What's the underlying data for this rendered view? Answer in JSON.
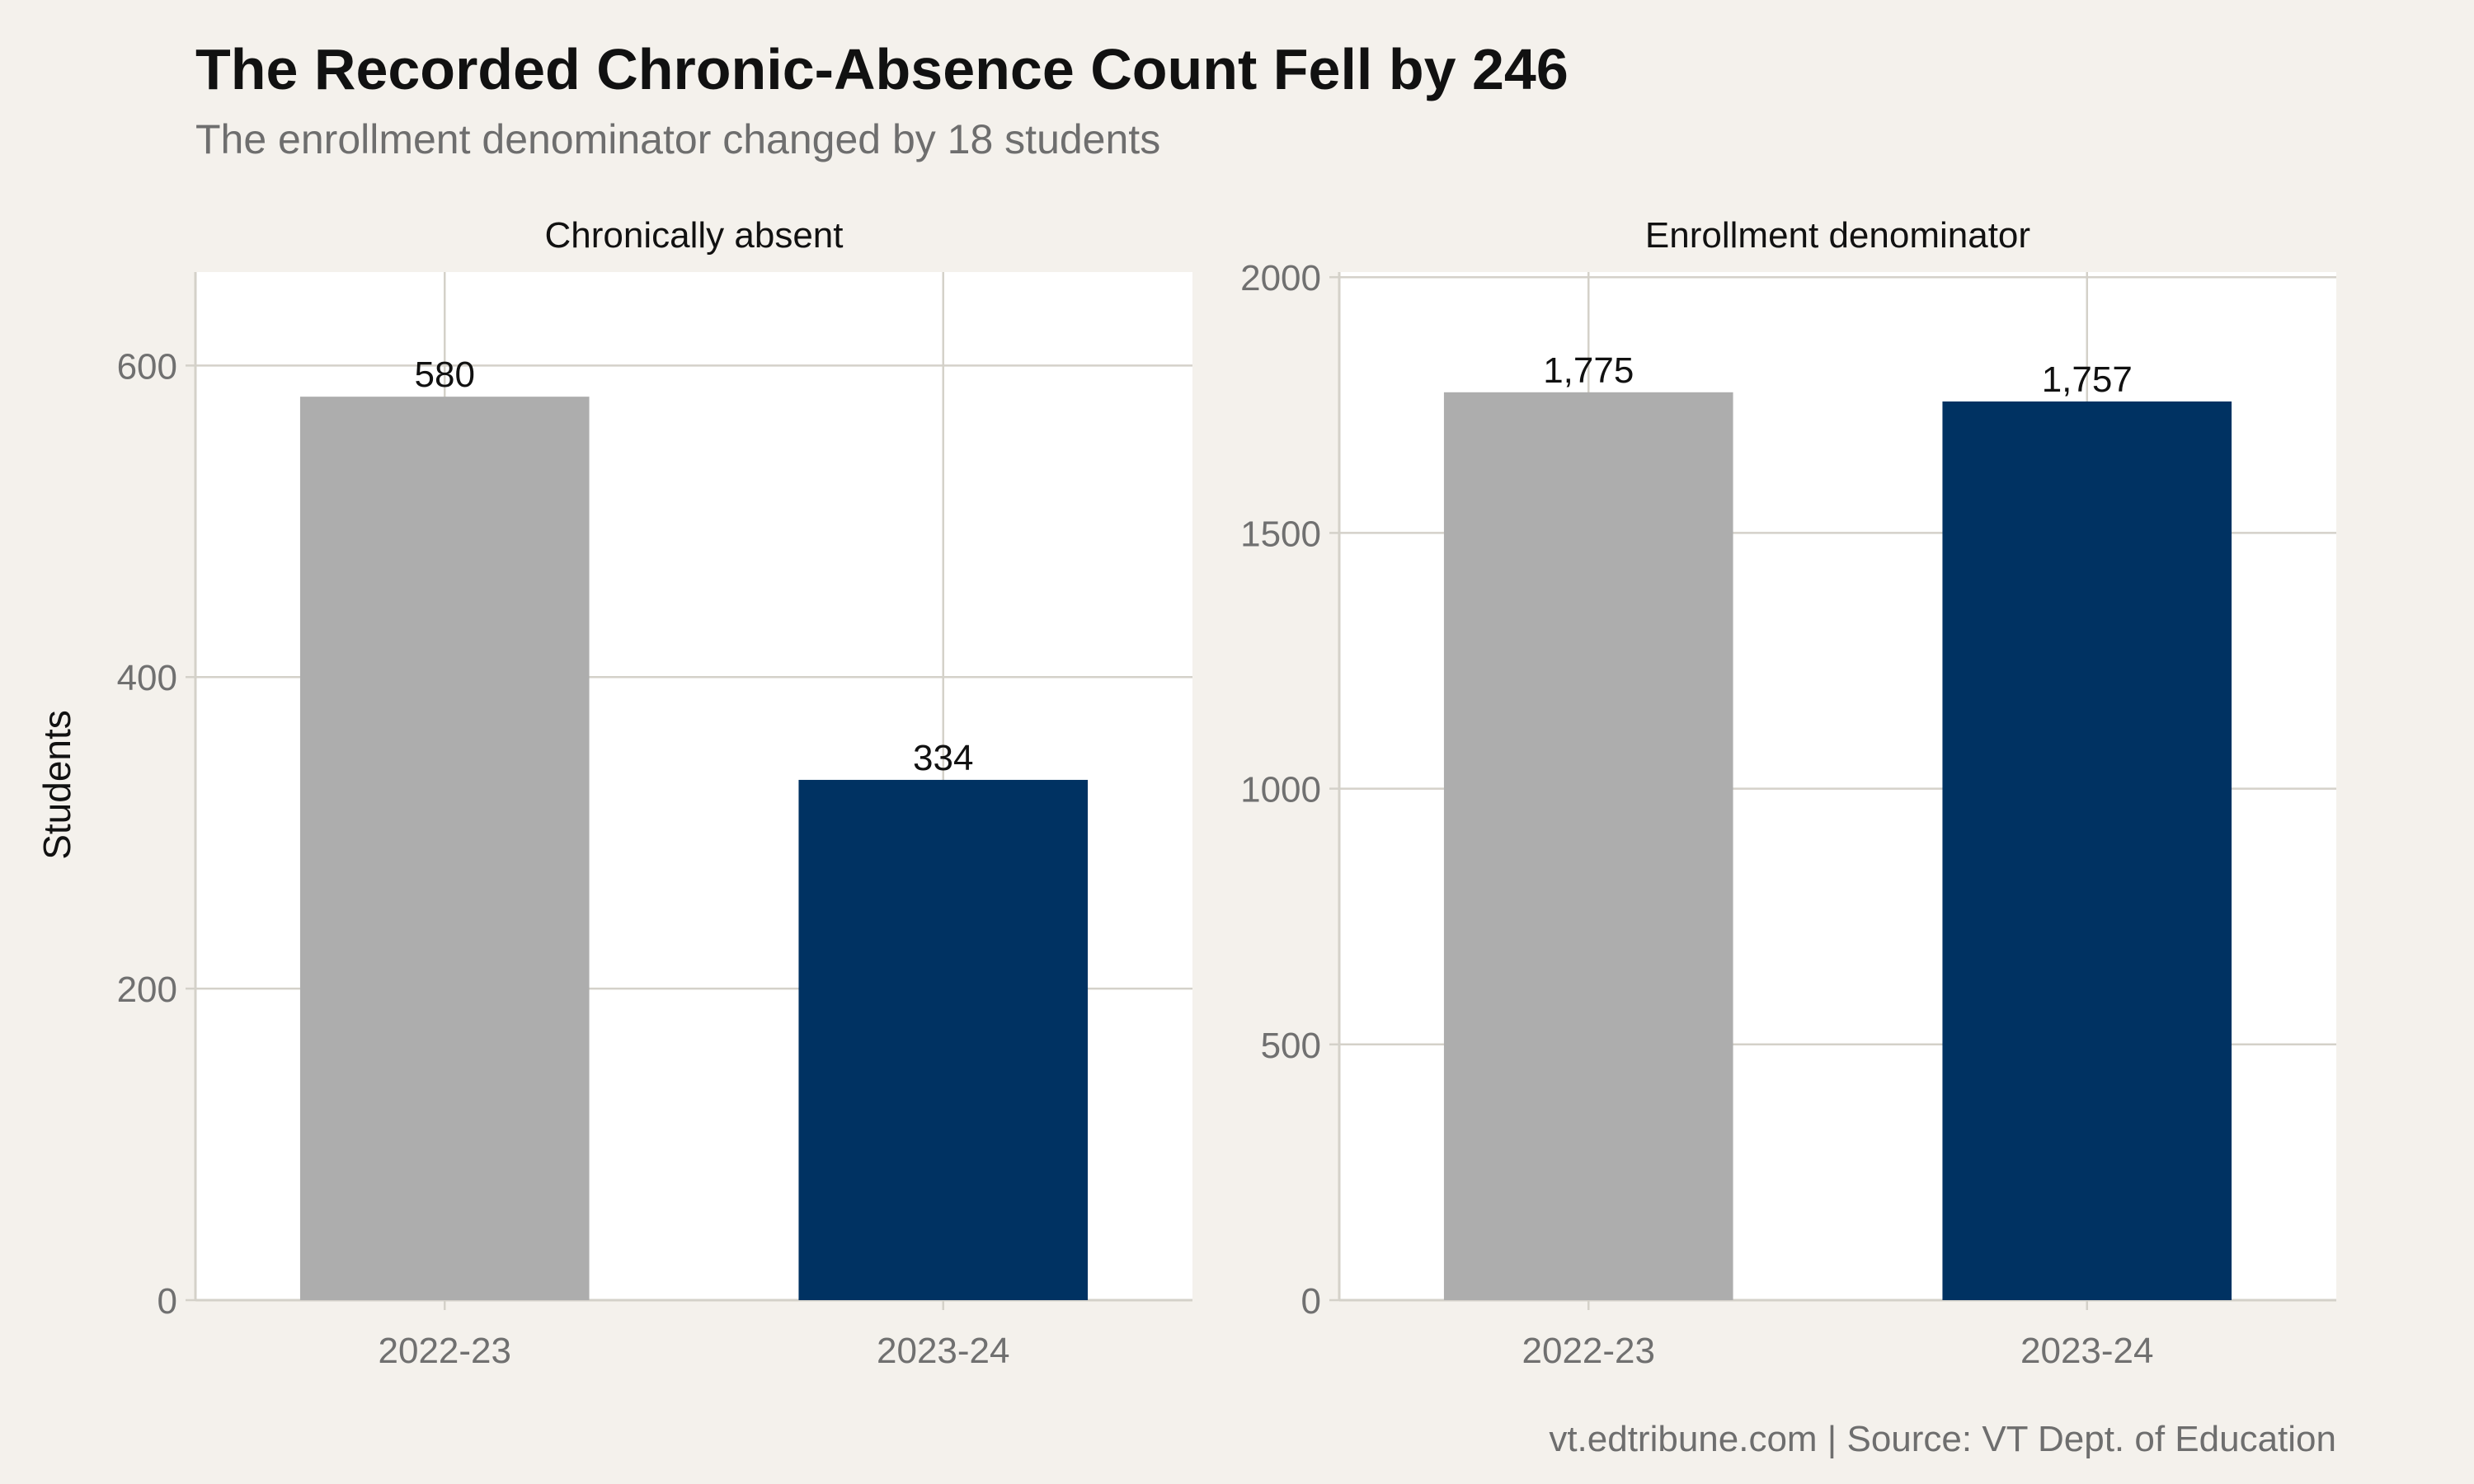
{
  "title": "The Recorded Chronic-Absence Count Fell by 246",
  "subtitle": "The enrollment denominator changed by 18 students",
  "caption": "vt.edtribune.com | Source: VT Dept. of Education",
  "colors": {
    "background": "#f4f1ec",
    "panel": "#ffffff",
    "grid": "#d4d1c9",
    "bar_2022_23": "#adadad",
    "bar_2023_24": "#003262",
    "title": "#111111",
    "subtitle": "#6e6e6e",
    "axis_text": "#707070"
  },
  "chart_data": [
    {
      "type": "bar",
      "facet_label": "Chronically absent",
      "categories": [
        "2022-23",
        "2023-24"
      ],
      "values": [
        580,
        334
      ],
      "value_labels": [
        "580",
        "334"
      ],
      "ylabel": "Students",
      "ylim": [
        0,
        660
      ],
      "yticks": [
        0,
        200,
        400,
        600
      ],
      "ytick_labels": [
        "0",
        "200",
        "400",
        "600"
      ],
      "grid": true
    },
    {
      "type": "bar",
      "facet_label": "Enrollment denominator",
      "categories": [
        "2022-23",
        "2023-24"
      ],
      "values": [
        1775,
        1757
      ],
      "value_labels": [
        "1,775",
        "1,757"
      ],
      "ylabel": "",
      "ylim": [
        0,
        2010
      ],
      "yticks": [
        0,
        500,
        1000,
        1500,
        2000
      ],
      "ytick_labels": [
        "0",
        "500",
        "1000",
        "1500",
        "2000"
      ],
      "grid": true
    }
  ]
}
